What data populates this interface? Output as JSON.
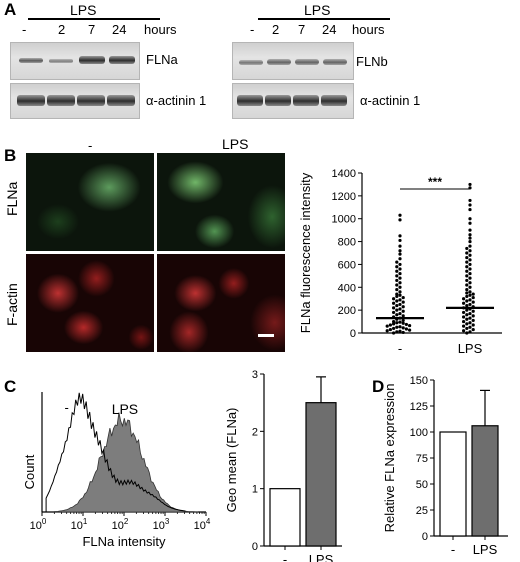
{
  "panel_a": {
    "label": "A",
    "left": {
      "treatment": "LPS",
      "lanes": [
        "-",
        "2",
        "7",
        "24"
      ],
      "unit": "hours",
      "blots": [
        "FLNa",
        "α-actinin 1"
      ]
    },
    "right": {
      "treatment": "LPS",
      "lanes": [
        "-",
        "2",
        "7",
        "24"
      ],
      "unit": "hours",
      "blots": [
        "FLNb",
        "α-actinin 1"
      ]
    }
  },
  "panel_b": {
    "label": "B",
    "columns": [
      "-",
      "LPS"
    ],
    "rows": [
      "FLNa",
      "F-actin"
    ],
    "chart_data": {
      "type": "scatter",
      "ylabel": "FLNa fluorescence intensity",
      "categories": [
        "-",
        "LPS"
      ],
      "ylim": [
        0,
        1400
      ],
      "yticks": [
        0,
        200,
        400,
        600,
        800,
        1000,
        1200,
        1400
      ],
      "means": [
        130,
        220
      ],
      "significance": "***",
      "series": [
        {
          "values": [
            1030,
            990,
            850,
            810,
            760,
            720,
            690,
            650,
            620,
            600,
            580,
            560,
            540,
            520,
            500,
            480,
            460,
            440,
            420,
            400,
            380,
            360,
            340,
            330,
            320,
            310,
            300,
            290,
            280,
            270,
            260,
            250,
            240,
            230,
            220,
            210,
            200,
            190,
            180,
            170,
            160,
            150,
            140,
            130,
            120,
            110,
            100,
            95,
            90,
            85,
            80,
            75,
            70,
            65,
            60,
            55,
            50,
            45,
            40,
            35,
            30,
            25,
            20,
            15,
            10,
            5,
            0
          ]
        },
        {
          "values": [
            1300,
            1270,
            1160,
            1120,
            1080,
            1000,
            960,
            900,
            860,
            830,
            800,
            760,
            740,
            720,
            700,
            680,
            660,
            640,
            620,
            600,
            580,
            560,
            540,
            520,
            500,
            480,
            460,
            440,
            420,
            400,
            380,
            360,
            350,
            340,
            330,
            320,
            310,
            300,
            290,
            280,
            270,
            260,
            250,
            240,
            230,
            220,
            210,
            200,
            190,
            180,
            170,
            160,
            150,
            140,
            130,
            120,
            110,
            100,
            90,
            80,
            70,
            60,
            50,
            40,
            30,
            20,
            10,
            0
          ]
        }
      ]
    }
  },
  "panel_c": {
    "label": "C",
    "histogram": {
      "ylabel": "Count",
      "xlabel": "FLNa intensity",
      "legend": [
        "-",
        "LPS"
      ],
      "xticks": [
        "10",
        "10",
        "10",
        "10",
        "10"
      ],
      "xtick_exps": [
        "0",
        "1",
        "2",
        "3",
        "4"
      ]
    },
    "chart_data": {
      "type": "bar",
      "ylabel": "Geo mean (FLNa)",
      "categories": [
        "-",
        "LPS"
      ],
      "values": [
        1.0,
        2.5
      ],
      "errors": [
        0,
        0.45
      ],
      "ylim": [
        0,
        3
      ],
      "yticks": [
        0,
        1,
        2,
        3
      ],
      "colors": [
        "#ffffff",
        "#6e6e6e"
      ]
    }
  },
  "panel_d": {
    "label": "D",
    "chart_data": {
      "type": "bar",
      "ylabel": "Relative FLNa expression",
      "categories": [
        "-",
        "LPS"
      ],
      "values": [
        100,
        106
      ],
      "errors": [
        0,
        34
      ],
      "ylim": [
        0,
        150
      ],
      "yticks": [
        0,
        25,
        50,
        75,
        100,
        125,
        150
      ],
      "colors": [
        "#ffffff",
        "#6e6e6e"
      ]
    }
  }
}
